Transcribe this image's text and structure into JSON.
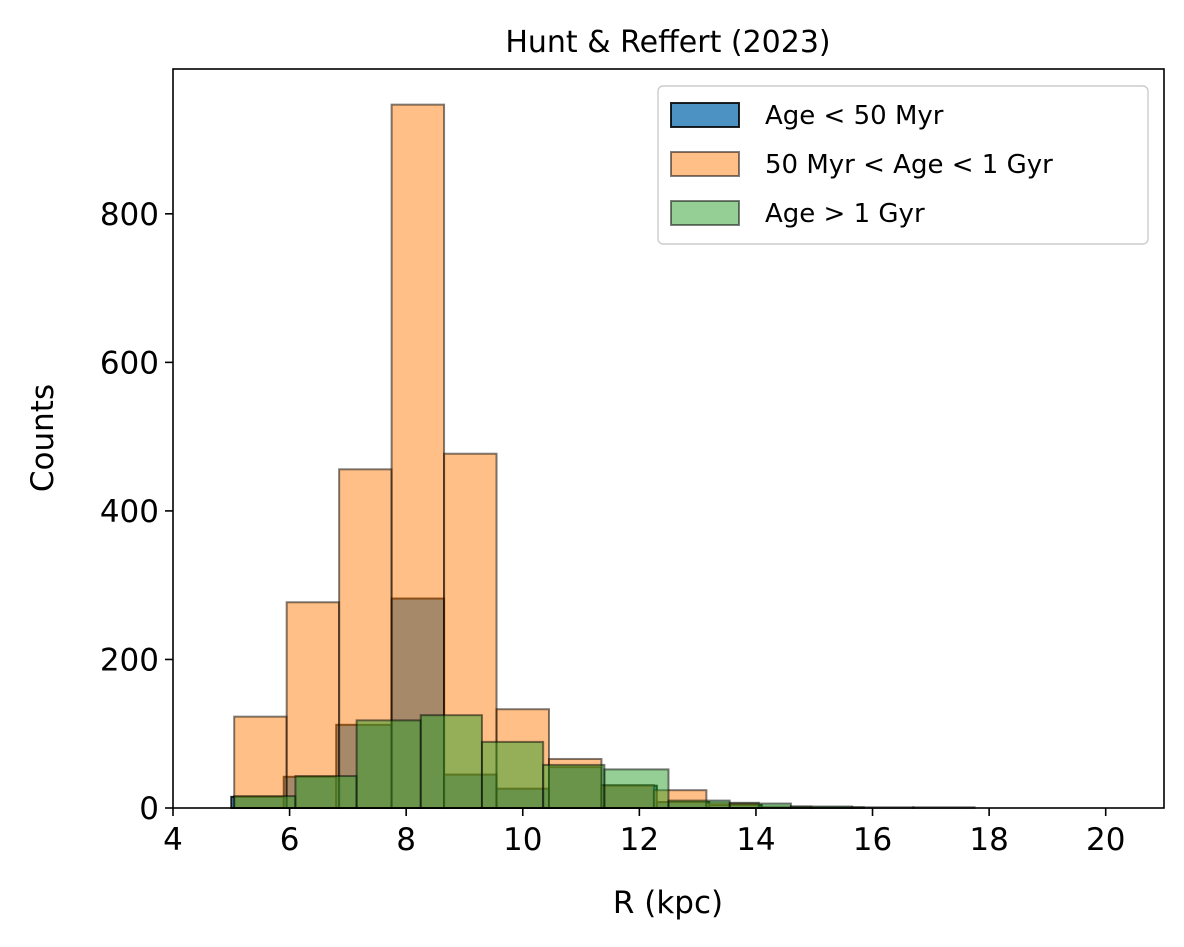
{
  "chart_data": {
    "type": "bar",
    "title": "Hunt & Reffert (2023)",
    "xlabel": "R (kpc)",
    "ylabel": "Counts",
    "xlim": [
      4,
      21
    ],
    "ylim": [
      0,
      995
    ],
    "xticks": [
      4,
      6,
      8,
      10,
      12,
      14,
      16,
      18,
      20
    ],
    "yticks": [
      0,
      200,
      400,
      600,
      800
    ],
    "grid": false,
    "legend_position": "upper right",
    "series": [
      {
        "name": "Age < 50 Myr",
        "color": "#1f77b4",
        "alpha": 0.8,
        "edges": [
          5.0,
          5.9,
          6.8,
          7.75,
          8.65,
          9.55,
          10.45,
          11.35,
          12.3,
          13.2,
          14.1
        ],
        "values": [
          15,
          42,
          112,
          282,
          45,
          26,
          55,
          30,
          8,
          4
        ]
      },
      {
        "name": "50 Myr < Age < 1 Gyr",
        "color": "#ff7f0e",
        "alpha": 0.5,
        "edges": [
          5.05,
          5.95,
          6.85,
          7.75,
          8.65,
          9.55,
          10.45,
          11.35,
          12.25,
          13.15,
          14.05,
          14.95,
          15.85
        ],
        "values": [
          123,
          277,
          456,
          947,
          477,
          133,
          66,
          31,
          24,
          7,
          2,
          1
        ]
      },
      {
        "name": "Age > 1 Gyr",
        "color": "#2ca02c",
        "alpha": 0.5,
        "edges": [
          5.05,
          6.1,
          7.15,
          8.25,
          9.3,
          10.35,
          11.4,
          12.5,
          13.55,
          14.6,
          15.65,
          16.7,
          17.75,
          18.8,
          19.85,
          20.9
        ],
        "values": [
          16,
          43,
          118,
          125,
          89,
          58,
          52,
          10,
          6,
          2,
          1,
          1,
          0,
          0,
          0
        ]
      }
    ]
  }
}
